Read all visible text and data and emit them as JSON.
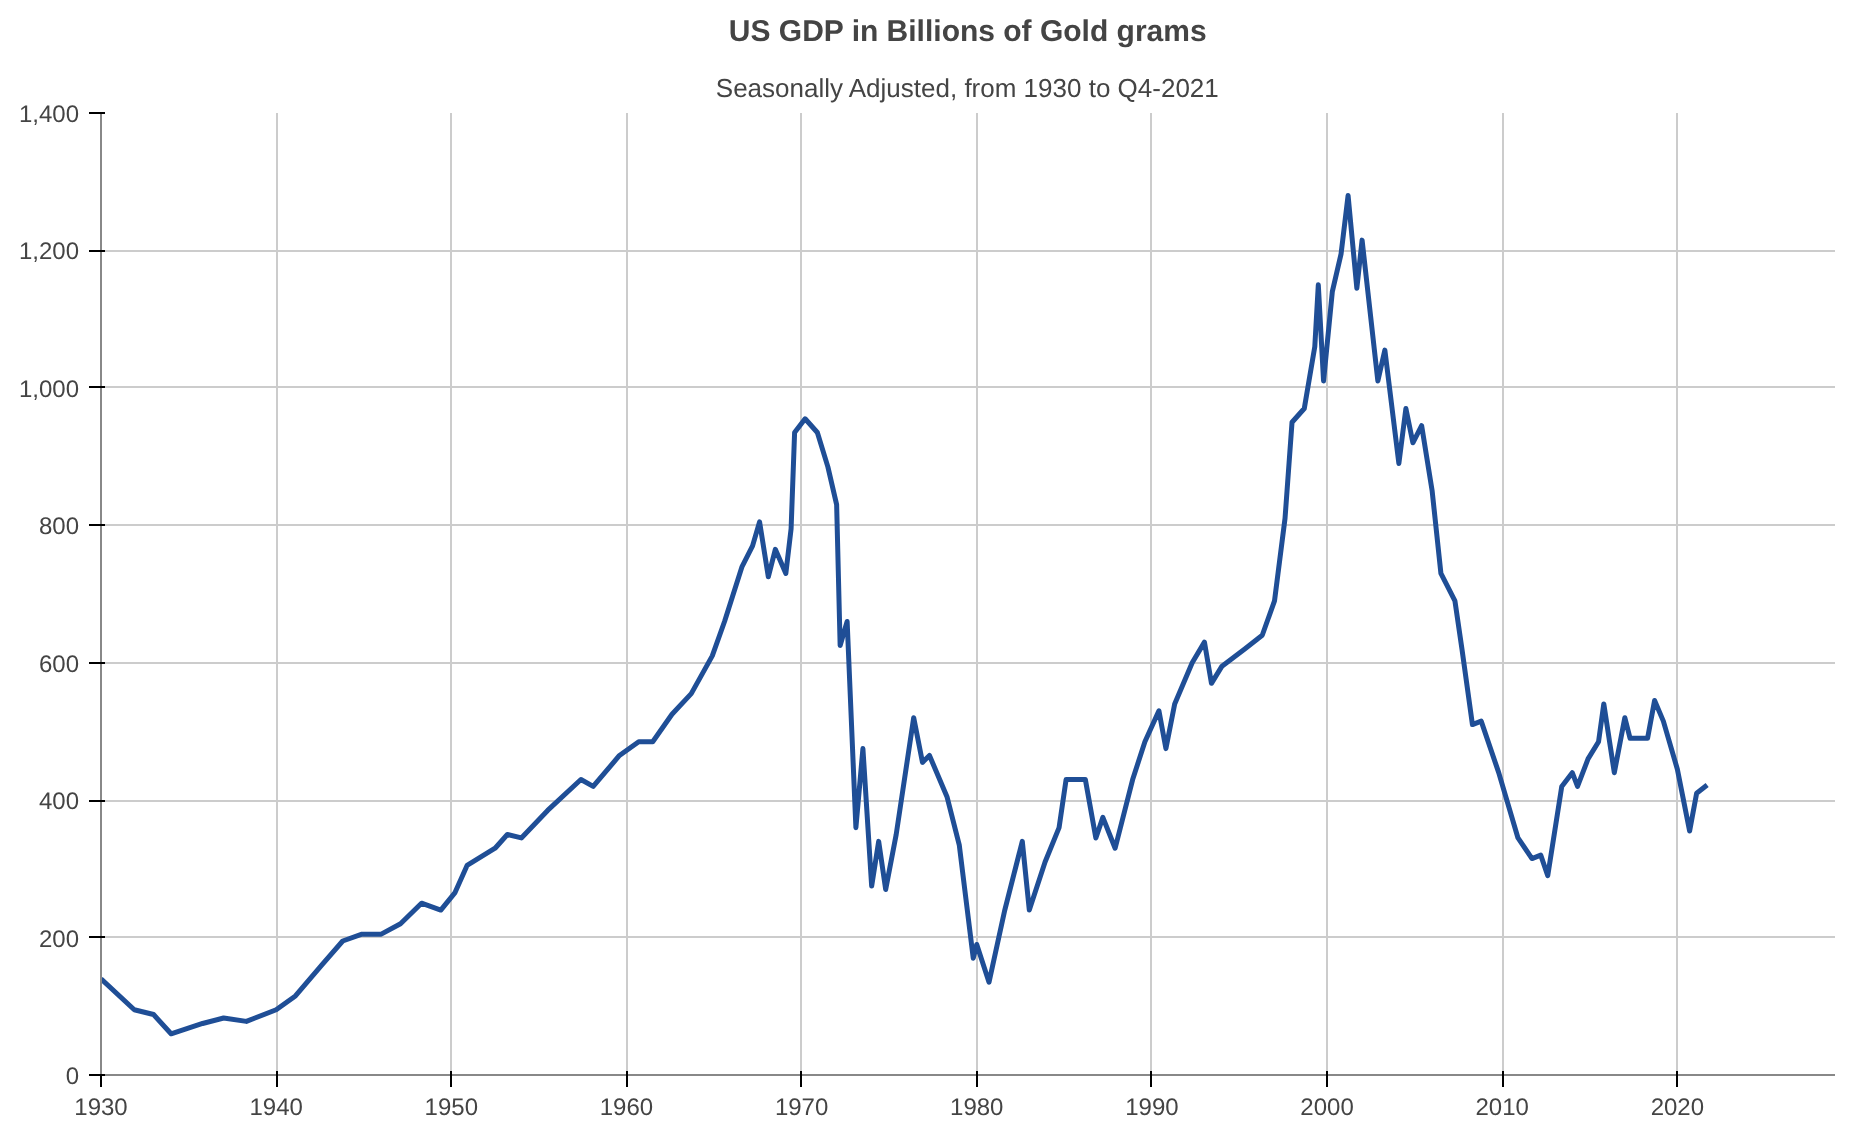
{
  "chart_data": {
    "type": "line",
    "title": "US GDP in Billions of Gold grams",
    "subtitle": "Seasonally Adjusted, from 1930 to Q4-2021",
    "x": [
      1930,
      1931.9,
      1933,
      1934,
      1935.8,
      1937,
      1938.3,
      1940,
      1941.1,
      1942.6,
      1943.8,
      1944.9,
      1946,
      1947.1,
      1948.3,
      1949.4,
      1950.2,
      1950.9,
      1952.5,
      1953.2,
      1954,
      1955.5,
      1957.4,
      1958.1,
      1959.6,
      1960.7,
      1961.5,
      1962.6,
      1963.7,
      1964.9,
      1965.6,
      1966.6,
      1967.2,
      1967.6,
      1968.1,
      1968.5,
      1969.1,
      1969.4,
      1969.6,
      1970.2,
      1970.9,
      1971.5,
      1972,
      1972.2,
      1972.6,
      1973.1,
      1973.5,
      1974,
      1974.4,
      1974.8,
      1975.4,
      1976.4,
      1976.9,
      1977.3,
      1978.3,
      1979,
      1979.8,
      1980,
      1980.7,
      1981.6,
      1982.6,
      1983,
      1983.9,
      1984.7,
      1985.1,
      1986.2,
      1986.8,
      1987.2,
      1987.9,
      1988.9,
      1989.6,
      1990.4,
      1990.8,
      1991.3,
      1992.3,
      1993,
      1993.4,
      1994,
      1995.3,
      1996.3,
      1997,
      1997.6,
      1998,
      1998.7,
      1999.3,
      1999.5,
      1999.8,
      2000.3,
      2000.8,
      2001.2,
      2001.7,
      2002,
      2002.9,
      2003.3,
      2004.1,
      2004.5,
      2004.9,
      2005.4,
      2006,
      2006.5,
      2007.3,
      2007.7,
      2008.3,
      2008.8,
      2009.8,
      2010.9,
      2011.7,
      2012.2,
      2012.6,
      2013.4,
      2014,
      2014.3,
      2014.9,
      2015.5,
      2015.8,
      2016.4,
      2017,
      2017.3,
      2018.3,
      2018.7,
      2019.2,
      2020,
      2020.7,
      2021.1,
      2021.7
    ],
    "series": [
      {
        "color": "#1f4e96",
        "values": [
          140,
          95,
          88,
          60,
          75,
          83,
          78,
          95,
          115,
          160,
          195,
          205,
          205,
          220,
          250,
          240,
          265,
          305,
          330,
          350,
          345,
          385,
          430,
          420,
          465,
          485,
          485,
          525,
          555,
          610,
          660,
          740,
          770,
          805,
          725,
          765,
          730,
          795,
          935,
          955,
          935,
          885,
          830,
          625,
          660,
          360,
          475,
          275,
          340,
          270,
          350,
          520,
          455,
          465,
          405,
          335,
          170,
          190,
          135,
          240,
          340,
          240,
          310,
          360,
          430,
          430,
          345,
          375,
          330,
          430,
          485,
          530,
          475,
          540,
          600,
          630,
          570,
          595,
          620,
          640,
          690,
          810,
          950,
          970,
          1060,
          1150,
          1010,
          1140,
          1195,
          1280,
          1145,
          1215,
          1010,
          1055,
          890,
          970,
          920,
          945,
          850,
          730,
          690,
          620,
          510,
          515,
          440,
          345,
          315,
          320,
          290,
          420,
          440,
          420,
          460,
          485,
          540,
          440,
          520,
          490,
          490,
          545,
          515,
          445,
          355,
          410,
          422
        ]
      }
    ],
    "xlim": [
      1930,
      2029
    ],
    "xticks": [
      1930,
      1940,
      1950,
      1960,
      1970,
      1980,
      1990,
      2000,
      2010,
      2020
    ],
    "ylim": [
      0,
      1400
    ],
    "yticks": [
      0,
      {
        "value": 200,
        "label": "200"
      },
      {
        "value": 400,
        "label": "400"
      },
      {
        "value": 600,
        "label": "600"
      },
      {
        "value": 800,
        "label": "800"
      },
      {
        "value": 1000,
        "label": "1,000"
      },
      {
        "value": 1200,
        "label": "1,200"
      },
      {
        "value": 1400,
        "label": "1,400"
      }
    ],
    "grid": true
  }
}
